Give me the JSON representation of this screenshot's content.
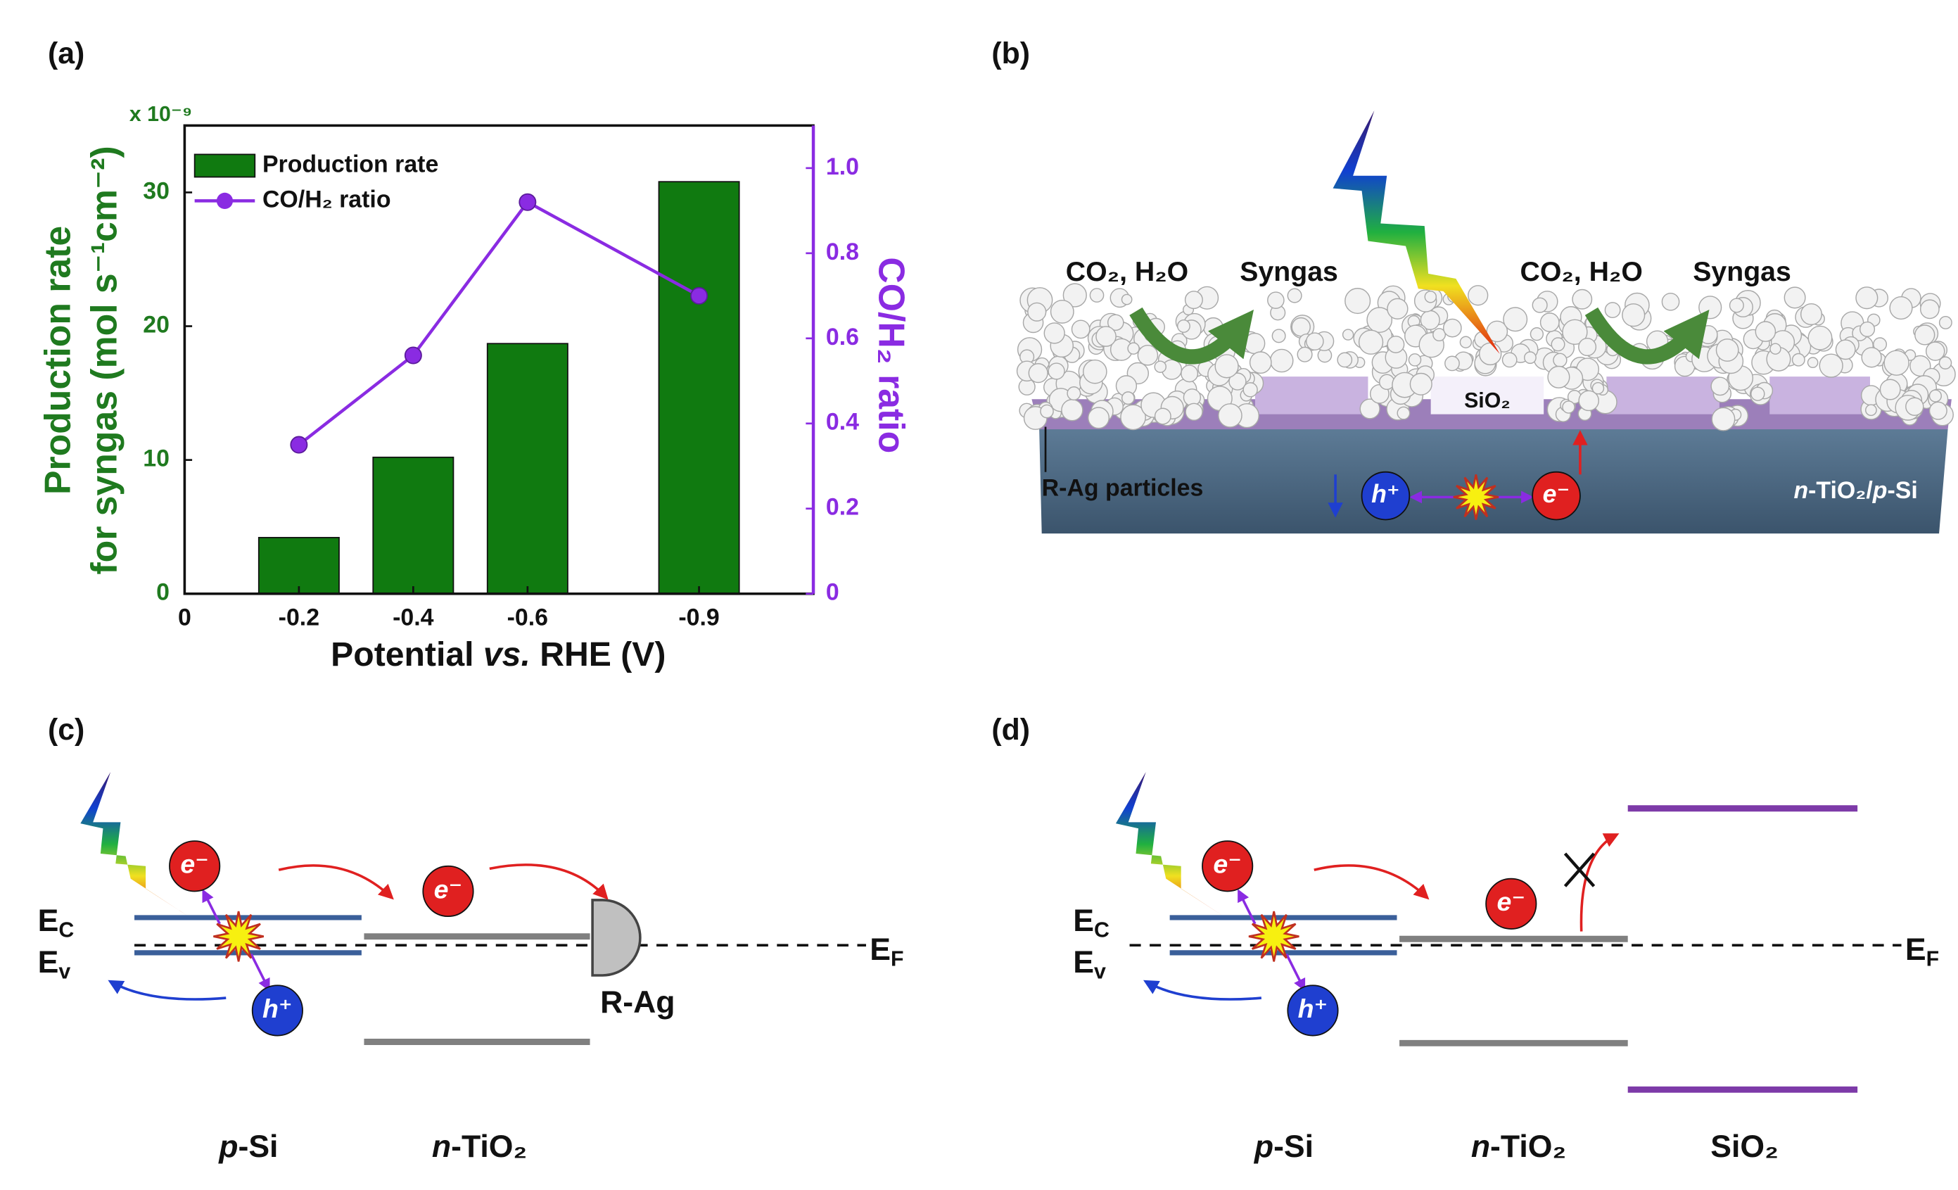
{
  "chart_data": {
    "type": "bar_line",
    "panel_label": "(a)",
    "x_label_parts": [
      "Potential ",
      "vs.",
      " RHE (V)"
    ],
    "y_label_lines": [
      "Production rate",
      "for syngas (mol s⁻¹cm⁻²)"
    ],
    "y_multiplier": "x 10⁻⁹",
    "y2_label": "CO/H₂ ratio",
    "x": [
      -0.2,
      -0.4,
      -0.6,
      -0.9
    ],
    "xlim": [
      0,
      -1.1
    ],
    "xticks": [
      0,
      -0.2,
      -0.4,
      -0.6,
      -0.9
    ],
    "ylim": [
      0,
      35
    ],
    "yticks": [
      0,
      10,
      20,
      30
    ],
    "y2lim": [
      0,
      1.1
    ],
    "y2ticks": [
      0,
      0.2,
      0.4,
      0.6,
      0.8,
      {
        "value": 1,
        "label": "1.0"
      }
    ],
    "y_axis_color": "#1f7a1f",
    "y2_axis_color": "#8a2be2",
    "legend": "upper left",
    "series": [
      {
        "name": "Production rate",
        "type": "bar",
        "color": "#107a10",
        "values": [
          4.2,
          10.2,
          18.7,
          30.8
        ]
      },
      {
        "name": "CO/H₂ ratio",
        "type": "line",
        "axis": "y2",
        "color": "#8a2be2",
        "values": [
          0.35,
          0.56,
          0.92,
          0.7
        ]
      }
    ]
  },
  "panel_b": {
    "label": "(b)",
    "left_reactants": "CO₂, H₂O",
    "left_product": "Syngas",
    "right_reactants": "CO₂, H₂O",
    "right_product": "Syngas",
    "oxide": "SiO₂",
    "particles": "R-Ag particles",
    "substrate_parts": [
      "n",
      "-TiO₂/",
      "p",
      "-Si"
    ],
    "hole": "h⁺",
    "electron": "e⁻"
  },
  "panel_c": {
    "label": "(c)",
    "ec": [
      "E",
      "C"
    ],
    "ev": [
      "E",
      "v"
    ],
    "ef": [
      "E",
      "F"
    ],
    "electron": "e⁻",
    "hole": "h⁺",
    "contact": "R-Ag",
    "layers": [
      {
        "italic": "p",
        "rest": "-Si"
      },
      {
        "italic": "n",
        "rest": "-TiO₂"
      }
    ]
  },
  "panel_d": {
    "label": "(d)",
    "ec": [
      "E",
      "C"
    ],
    "ev": [
      "E",
      "v"
    ],
    "ef": [
      "E",
      "F"
    ],
    "electron": "e⁻",
    "hole": "h⁺",
    "layers": [
      {
        "italic": "p",
        "rest": "-Si"
      },
      {
        "italic": "n",
        "rest": "-TiO₂"
      },
      {
        "rest": "SiO₂"
      }
    ]
  }
}
